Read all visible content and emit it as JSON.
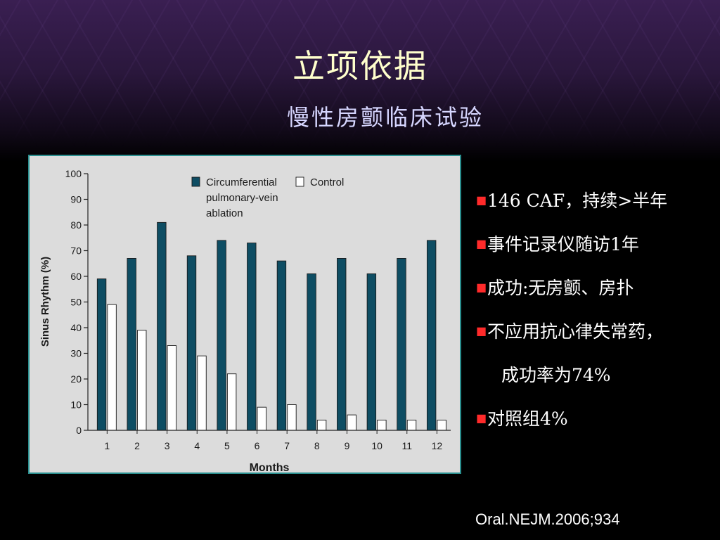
{
  "slide": {
    "title": "立项依据",
    "subtitle": "慢性房颤临床试验",
    "bullets": [
      {
        "text": "146 CAF，持续>半年",
        "marker": "■"
      },
      {
        "text": "事件记录仪随访1年",
        "marker": "■"
      },
      {
        "text": "成功:无房颤、房扑",
        "marker": "■"
      },
      {
        "text": "不应用抗心律失常药，",
        "marker": "■"
      },
      {
        "text": "成功率为74%",
        "marker": ""
      },
      {
        "text": "对照组4%",
        "marker": "■"
      }
    ],
    "citation": "Oral.NEJM.2006;934",
    "colors": {
      "title": "#ffffcc",
      "subtitle": "#d6d6ff",
      "bullet_marker": "#ff2a2a",
      "chart_frame": "#2a8f8f"
    }
  },
  "chart_data": {
    "type": "bar",
    "categories": [
      "1",
      "2",
      "3",
      "4",
      "5",
      "6",
      "7",
      "8",
      "9",
      "10",
      "11",
      "12"
    ],
    "series": [
      {
        "name": "Circumferential pulmonary-vein ablation",
        "values": [
          59,
          67,
          81,
          68,
          74,
          73,
          66,
          61,
          67,
          61,
          67,
          74
        ],
        "color": "#0e4d63"
      },
      {
        "name": "Control",
        "values": [
          49,
          39,
          33,
          29,
          22,
          9,
          10,
          4,
          6,
          4,
          4,
          4
        ],
        "color": "#ffffff"
      }
    ],
    "xlabel": "Months",
    "ylabel": "Sinus Rhythm (%)",
    "ylim": [
      0,
      100
    ],
    "yticks": [
      0,
      10,
      20,
      30,
      40,
      50,
      60,
      70,
      80,
      90,
      100
    ],
    "legend_position": "top",
    "grid": false
  }
}
